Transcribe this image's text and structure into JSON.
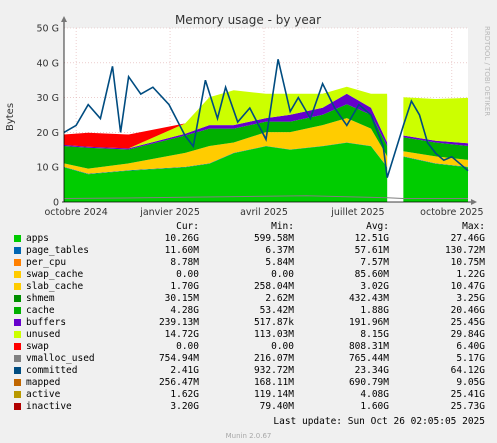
{
  "chart_data": {
    "type": "area",
    "title": "Memory usage - by year",
    "ylabel": "Bytes",
    "watermark": "RRDTOOL / TOBI OETIKER",
    "yticks": [
      "0",
      "10 G",
      "20 G",
      "30 G",
      "40 G",
      "50 G"
    ],
    "ylim": [
      0,
      50
    ],
    "x_categories": [
      "octobre 2024",
      "janvier 2025",
      "avril 2025",
      "juillet 2025",
      "octobre 2025"
    ],
    "stack_bands": [
      {
        "name": "apps",
        "values": [
          10,
          8,
          9,
          10,
          11,
          14,
          16,
          15,
          16,
          17,
          16,
          10,
          0,
          13,
          11,
          10
        ]
      },
      {
        "name": "page_tables",
        "values": [
          0.1,
          0.1,
          0.1,
          0.1,
          0.1,
          0.1,
          0.1,
          0.1,
          0.1,
          0.1,
          0.1,
          0.1,
          0,
          0.1,
          0.1,
          0.1
        ]
      },
      {
        "name": "slab_cache",
        "values": [
          1,
          1.5,
          2,
          4,
          5,
          3,
          4,
          5,
          6,
          7,
          5,
          3,
          0,
          1.5,
          2,
          2
        ]
      },
      {
        "name": "cache",
        "values": [
          5,
          6,
          4,
          5,
          5,
          4,
          3,
          3,
          3,
          4,
          4,
          3,
          0,
          4,
          4,
          4
        ]
      },
      {
        "name": "buffers",
        "values": [
          0.3,
          0.3,
          0.3,
          0.5,
          1,
          1,
          1,
          2,
          2,
          3,
          2,
          1,
          0,
          0.5,
          0.5,
          0.8
        ]
      },
      {
        "name": "unused",
        "values": [
          0,
          0,
          0,
          3,
          8,
          10,
          7,
          6,
          4,
          2,
          4,
          14,
          0,
          11,
          12,
          13
        ]
      },
      {
        "name": "swap",
        "values": [
          3,
          4,
          4,
          0,
          0,
          0,
          0,
          0,
          0,
          0,
          0,
          0,
          0,
          0,
          0,
          0
        ]
      }
    ],
    "stack_x": [
      0,
      0.06,
      0.16,
      0.3,
      0.36,
      0.42,
      0.5,
      0.56,
      0.64,
      0.7,
      0.76,
      0.8,
      0.82,
      0.84,
      0.92,
      1.0
    ],
    "committed_line": {
      "name": "committed",
      "x": [
        0,
        0.03,
        0.06,
        0.09,
        0.12,
        0.14,
        0.16,
        0.19,
        0.22,
        0.26,
        0.3,
        0.32,
        0.35,
        0.38,
        0.4,
        0.43,
        0.46,
        0.5,
        0.53,
        0.56,
        0.58,
        0.61,
        0.64,
        0.67,
        0.7,
        0.73,
        0.76,
        0.79,
        0.8,
        0.84,
        0.86,
        0.88,
        0.9,
        0.92,
        0.94,
        0.96,
        0.98,
        1.0
      ],
      "y": [
        20,
        22,
        28,
        24,
        39,
        20,
        36,
        31,
        33,
        28,
        19,
        16,
        35,
        24,
        33,
        23,
        27,
        18,
        41,
        26,
        30,
        24,
        34,
        27,
        22,
        28,
        25,
        16,
        7,
        22,
        29,
        25,
        17,
        14,
        12,
        13,
        11,
        9
      ]
    },
    "gray_line": {
      "name": "vmalloc_used",
      "x": [
        0,
        0.2,
        0.4,
        0.6,
        0.8,
        0.84,
        1.0
      ],
      "y": [
        1,
        1.2,
        1.5,
        1.8,
        1.2,
        1,
        1
      ]
    },
    "gaps": [
      [
        0.8,
        0.84
      ]
    ],
    "legend_headers": [
      "Cur:",
      "Min:",
      "Avg:",
      "Max:"
    ],
    "legend": [
      {
        "name": "apps",
        "color": "#00cc00",
        "cur": "10.26G",
        "min": "599.58M",
        "avg": "12.51G",
        "max": "27.46G"
      },
      {
        "name": "page_tables",
        "color": "#0066b3",
        "cur": "11.60M",
        "min": "6.37M",
        "avg": "57.61M",
        "max": "130.72M"
      },
      {
        "name": "per_cpu",
        "color": "#ff8000",
        "cur": "8.78M",
        "min": "5.84M",
        "avg": "7.57M",
        "max": "10.75M"
      },
      {
        "name": "swap_cache",
        "color": "#ffcc00",
        "cur": "0.00",
        "min": "0.00",
        "avg": "85.60M",
        "max": "1.22G"
      },
      {
        "name": "slab_cache",
        "color": "#ffcc00",
        "cur": "1.70G",
        "min": "258.04M",
        "avg": "3.02G",
        "max": "10.47G"
      },
      {
        "name": "shmem",
        "color": "#008f00",
        "cur": "30.15M",
        "min": "2.62M",
        "avg": "432.43M",
        "max": "3.25G"
      },
      {
        "name": "cache",
        "color": "#00b000",
        "cur": "4.28G",
        "min": "53.42M",
        "avg": "1.88G",
        "max": "20.46G"
      },
      {
        "name": "buffers",
        "color": "#6600cc",
        "cur": "239.13M",
        "min": "517.87k",
        "avg": "191.96M",
        "max": "25.45G"
      },
      {
        "name": "unused",
        "color": "#ccff00",
        "cur": "14.72G",
        "min": "113.03M",
        "avg": "8.15G",
        "max": "29.84G"
      },
      {
        "name": "swap",
        "color": "#ff0000",
        "cur": "0.00",
        "min": "0.00",
        "avg": "808.31M",
        "max": "6.40G"
      },
      {
        "name": "vmalloc_used",
        "color": "#808080",
        "cur": "754.94M",
        "min": "216.07M",
        "avg": "765.44M",
        "max": "5.17G"
      },
      {
        "name": "committed",
        "color": "#004c80",
        "cur": "2.41G",
        "min": "932.72M",
        "avg": "23.34G",
        "max": "64.12G"
      },
      {
        "name": "mapped",
        "color": "#c06600",
        "cur": "256.47M",
        "min": "168.11M",
        "avg": "690.79M",
        "max": "9.05G"
      },
      {
        "name": "active",
        "color": "#b89900",
        "cur": "1.62G",
        "min": "119.14M",
        "avg": "4.08G",
        "max": "25.41G"
      },
      {
        "name": "inactive",
        "color": "#b00000",
        "cur": "3.20G",
        "min": "79.40M",
        "avg": "1.60G",
        "max": "25.73G"
      }
    ]
  },
  "footer": {
    "last_update": "Last update:  Sun Oct 26 02:05:05 2025",
    "version": "Munin 2.0.67"
  }
}
